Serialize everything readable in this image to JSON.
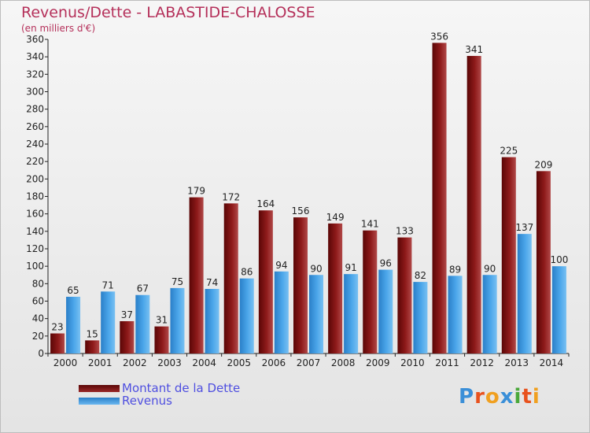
{
  "header": {
    "title": "Revenus/Dette - LABASTIDE-CHALOSSE",
    "subtitle": "(en milliers d'€)"
  },
  "logo": {
    "text": "Proxiti",
    "letter_colors": [
      "#3a8fd8",
      "#e8521e",
      "#f0a020",
      "#3a8fd8",
      "#4aa83a",
      "#e8521e",
      "#f0a020"
    ]
  },
  "chart_data": {
    "type": "bar",
    "title": "Revenus/Dette - LABASTIDE-CHALOSSE",
    "subtitle": "(en milliers d'€)",
    "categories": [
      "2000",
      "2001",
      "2002",
      "2003",
      "2004",
      "2005",
      "2006",
      "2007",
      "2008",
      "2009",
      "2010",
      "2011",
      "2012",
      "2013",
      "2014"
    ],
    "series": [
      {
        "name": "Montant de la Dette",
        "color": "#7a1010",
        "values": [
          23,
          15,
          37,
          31,
          179,
          172,
          164,
          156,
          149,
          141,
          133,
          356,
          341,
          225,
          209
        ]
      },
      {
        "name": "Revenus",
        "color": "#3d9be0",
        "values": [
          65,
          71,
          67,
          75,
          74,
          86,
          94,
          90,
          91,
          96,
          82,
          89,
          90,
          137,
          100
        ]
      }
    ],
    "ylim": [
      0,
      360
    ],
    "yticks": [
      0,
      20,
      40,
      60,
      80,
      100,
      120,
      140,
      160,
      180,
      200,
      220,
      240,
      260,
      280,
      300,
      320,
      340,
      360
    ],
    "grid": false,
    "legend_position": "bottom-left"
  }
}
